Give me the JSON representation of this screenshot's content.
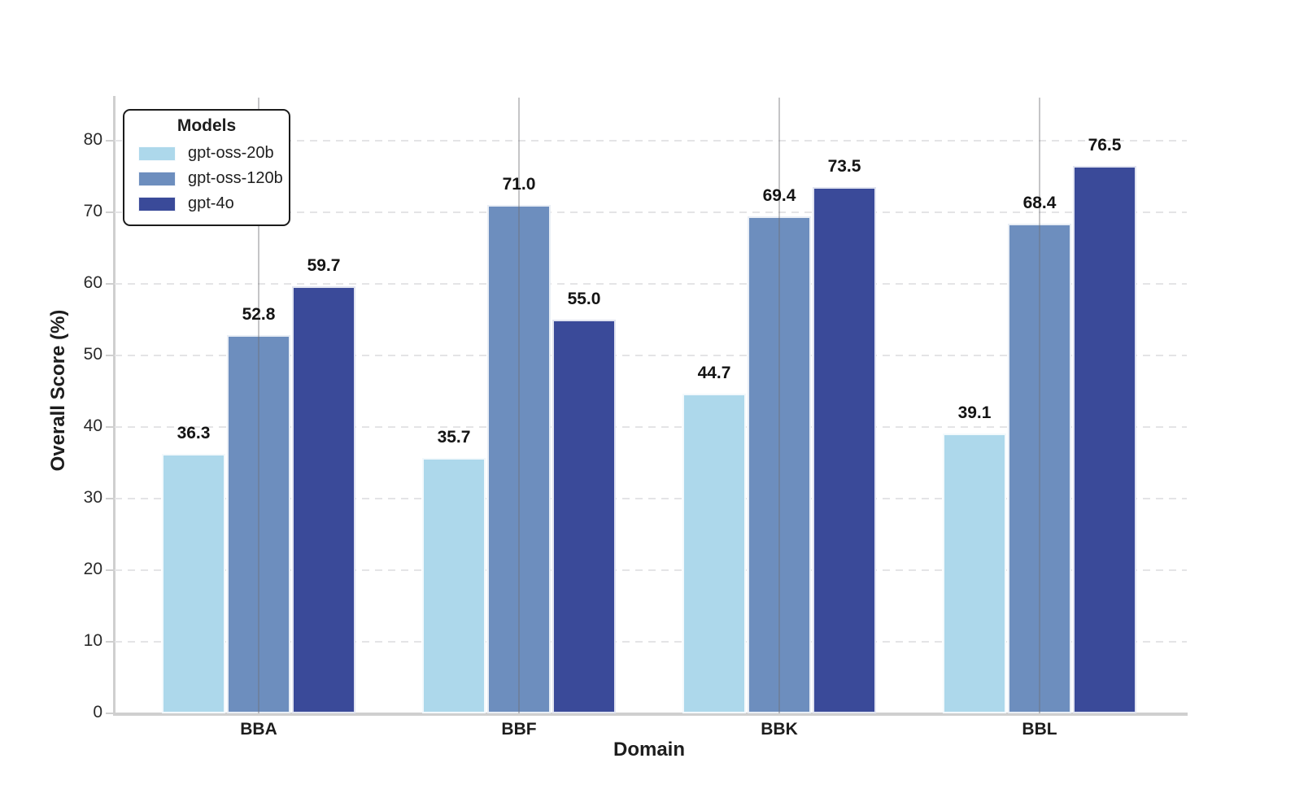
{
  "chart_data": {
    "type": "bar",
    "title": "",
    "xlabel": "Domain",
    "ylabel": "Overall Score (%)",
    "categories": [
      "BBA",
      "BBF",
      "BBK",
      "BBL"
    ],
    "series": [
      {
        "name": "gpt-oss-20b",
        "color": "#add8eb",
        "values": [
          36.3,
          35.7,
          44.7,
          39.1
        ]
      },
      {
        "name": "gpt-oss-120b",
        "color": "#6d8ebe",
        "values": [
          52.8,
          71.0,
          69.4,
          68.4
        ]
      },
      {
        "name": "gpt-4o",
        "color": "#3a4a99",
        "values": [
          59.7,
          55.0,
          73.5,
          76.5
        ]
      }
    ],
    "value_label_decimals": 1,
    "yticks": [
      0,
      10,
      20,
      30,
      40,
      50,
      60,
      70,
      80
    ],
    "ylim": [
      0,
      86
    ],
    "legend": {
      "title": "Models",
      "position": "upper-left"
    },
    "grid": {
      "horizontal": "dashed",
      "vertical": "solid-at-category-centers"
    },
    "spine_color": "#cfcfcf",
    "background": "#ffffff"
  }
}
